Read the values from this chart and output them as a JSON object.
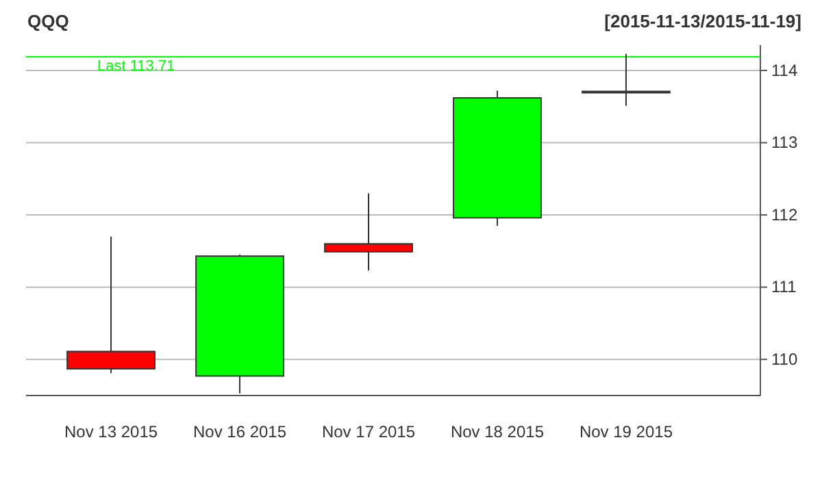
{
  "chart_data": {
    "type": "candlestick",
    "title": "QQQ",
    "subtitle": "[2015-11-13/2015-11-19]",
    "categories": [
      "Nov 13 2015",
      "Nov 16 2015",
      "Nov 17 2015",
      "Nov 18 2015",
      "Nov 19 2015"
    ],
    "ohlc": [
      [
        110.11,
        111.7,
        109.81,
        109.87
      ],
      [
        109.77,
        111.45,
        109.53,
        111.43
      ],
      [
        111.6,
        112.3,
        111.23,
        111.49
      ],
      [
        111.96,
        113.72,
        111.85,
        113.62
      ],
      [
        113.7,
        114.23,
        113.51,
        113.71
      ]
    ],
    "colors": [
      "#ff0000",
      "#00ff00",
      "#ff0000",
      "#00ff00",
      "#00ff00"
    ],
    "ylim": [
      109.5,
      114.35
    ],
    "yticks": [
      110,
      111,
      112,
      113,
      114
    ],
    "grid": "y",
    "ref_lines": [
      {
        "axis": "y",
        "value": 114.19,
        "label": "Last 113.71",
        "color": "#00ff00"
      }
    ]
  }
}
